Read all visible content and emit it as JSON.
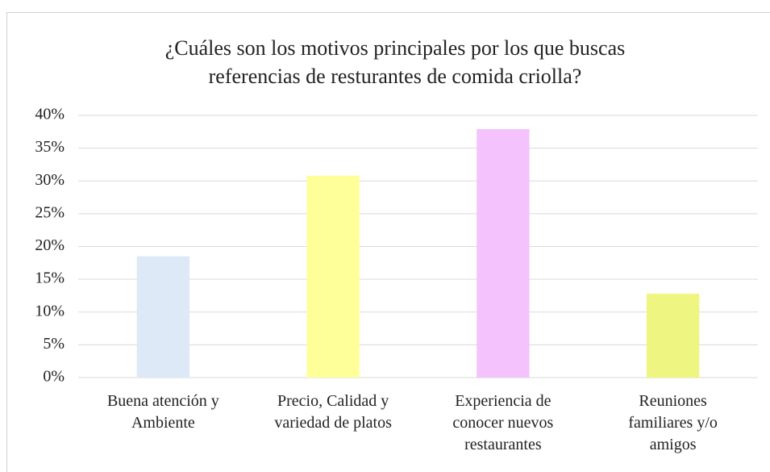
{
  "chart_data": {
    "type": "bar",
    "title": "¿Cuáles son los motivos principales por los que buscas\nreferencias de resturantes de comida criolla?",
    "categories": [
      "Buena atención y\nAmbiente",
      "Precio, Calidad y\nvariedad de platos",
      "Experiencia de\nconocer nuevos\nrestaurantes",
      "Reuniones\nfamiliares y/o\namigos"
    ],
    "values": [
      18.5,
      30.8,
      37.9,
      12.8
    ],
    "colors": [
      "#dde9f6",
      "#ffff99",
      "#f4c2fc",
      "#eef580"
    ],
    "ylim": [
      0,
      40
    ],
    "yticks": [
      {
        "value": 0,
        "label": "0%"
      },
      {
        "value": 5,
        "label": "5%"
      },
      {
        "value": 10,
        "label": "10%"
      },
      {
        "value": 15,
        "label": "15%"
      },
      {
        "value": 20,
        "label": "20%"
      },
      {
        "value": 25,
        "label": "25%"
      },
      {
        "value": 30,
        "label": "30%"
      },
      {
        "value": 35,
        "label": "35%"
      },
      {
        "value": 40,
        "label": "40%"
      }
    ],
    "grid": true
  }
}
